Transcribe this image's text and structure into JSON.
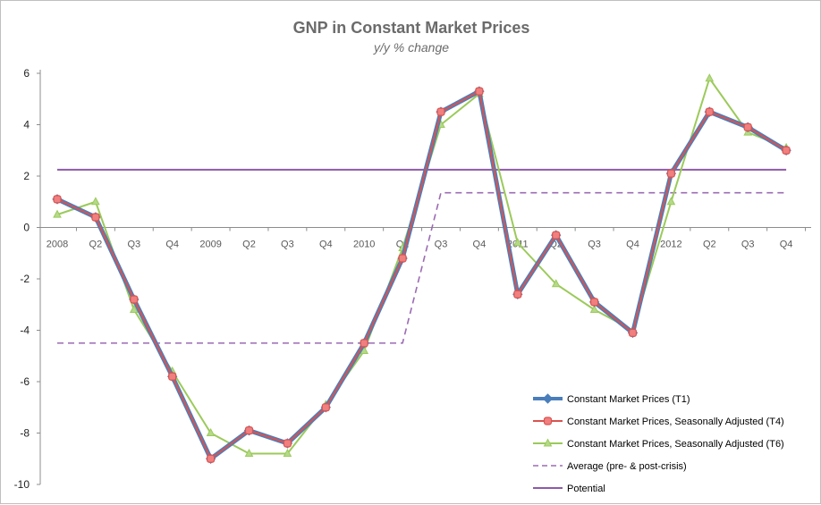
{
  "chart_data": {
    "type": "line",
    "title": "GNP in Constant Market Prices",
    "subtitle": "y/y % change",
    "xlabel": "",
    "ylabel": "",
    "ylim": [
      -10,
      6
    ],
    "yticks": [
      6,
      4,
      2,
      0,
      -2,
      -4,
      -6,
      -8,
      -10
    ],
    "categories": [
      "2008",
      "Q2",
      "Q3",
      "Q4",
      "2009",
      "Q2",
      "Q3",
      "Q4",
      "2010",
      "Q2",
      "Q3",
      "Q4",
      "2011",
      "Q2",
      "Q3",
      "Q4",
      "2012",
      "Q2",
      "Q3",
      "Q4"
    ],
    "grid": false,
    "legend_position": "bottom-right",
    "series": [
      {
        "name": "Constant Market Prices (T1)",
        "color": "#4a7ebb",
        "style": "solid",
        "marker": "diamond",
        "values": [
          1.1,
          0.4,
          -2.8,
          -5.8,
          -9.0,
          -7.9,
          -8.4,
          -7.0,
          -4.5,
          -1.2,
          4.5,
          5.3,
          -2.6,
          -0.3,
          -2.9,
          -4.1,
          2.1,
          4.5,
          3.9,
          3.0
        ]
      },
      {
        "name": "Constant Market Prices, Seasonally Adjusted (T4)",
        "color": "#d9534f",
        "style": "solid",
        "marker": "square",
        "values": [
          1.1,
          0.4,
          -2.8,
          -5.8,
          -9.0,
          -7.9,
          -8.4,
          -7.0,
          -4.5,
          -1.2,
          4.5,
          5.3,
          -2.6,
          -0.3,
          -2.9,
          -4.1,
          2.1,
          4.5,
          3.9,
          3.0
        ]
      },
      {
        "name": "Constant Market Prices, Seasonally Adjusted (T6)",
        "color": "#9bca5a",
        "style": "solid",
        "marker": "triangle",
        "values": [
          0.5,
          1.0,
          -3.2,
          -5.6,
          -8.0,
          -8.8,
          -8.8,
          -6.9,
          -4.8,
          -0.8,
          4.0,
          5.2,
          -0.6,
          -2.2,
          -3.2,
          -4.0,
          1.0,
          5.8,
          3.7,
          3.1
        ]
      },
      {
        "name": "Average (pre- & post-crisis)",
        "color": "#9b6bb3",
        "style": "dashed",
        "marker": "none",
        "values": [
          -4.5,
          -4.5,
          -4.5,
          -4.5,
          -4.5,
          -4.5,
          -4.5,
          -4.5,
          -4.5,
          -4.5,
          1.35,
          1.35,
          1.35,
          1.35,
          1.35,
          1.35,
          1.35,
          1.35,
          1.35,
          1.35
        ]
      },
      {
        "name": "Potential",
        "color": "#8e5aa8",
        "style": "solid",
        "marker": "none",
        "values": [
          2.25,
          2.25,
          2.25,
          2.25,
          2.25,
          2.25,
          2.25,
          2.25,
          2.25,
          2.25,
          2.25,
          2.25,
          2.25,
          2.25,
          2.25,
          2.25,
          2.25,
          2.25,
          2.25,
          2.25
        ]
      }
    ]
  }
}
